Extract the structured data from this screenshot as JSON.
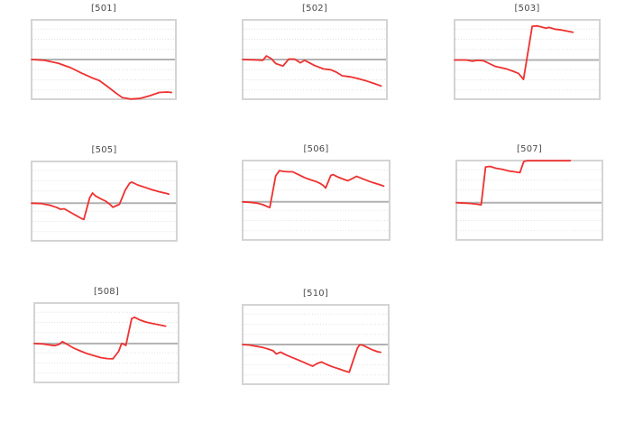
{
  "page": {
    "background": "#ffffff",
    "description": "Grid of eight red sparkline trend charts with bracketed numeric titles"
  },
  "style": {
    "line_color": "#ee3230",
    "zero_line_color": "#b2b2b2",
    "border_color": "#d4d4d4",
    "grid_color": "#e1e1e1",
    "title_color": "#4a4a4a",
    "plot_background": "#ffffff"
  },
  "chart_data": [
    {
      "id": "501",
      "title": "[501]",
      "type": "line",
      "grid": "horizontal-dotted",
      "x_axis": "hidden",
      "y_axis": "hidden",
      "zero_line_frac": 0.5,
      "units": "normalized: v = fraction of plot height above (+) / below (-) the zero line",
      "points": [
        [
          0.0,
          0.0
        ],
        [
          0.05,
          -0.005
        ],
        [
          0.09,
          -0.01
        ],
        [
          0.185,
          -0.045
        ],
        [
          0.27,
          -0.1
        ],
        [
          0.345,
          -0.165
        ],
        [
          0.42,
          -0.225
        ],
        [
          0.47,
          -0.26
        ],
        [
          0.535,
          -0.345
        ],
        [
          0.59,
          -0.42
        ],
        [
          0.63,
          -0.47
        ],
        [
          0.685,
          -0.49
        ],
        [
          0.75,
          -0.48
        ],
        [
          0.82,
          -0.445
        ],
        [
          0.885,
          -0.405
        ],
        [
          0.94,
          -0.4
        ],
        [
          0.97,
          -0.405
        ]
      ]
    },
    {
      "id": "502",
      "title": "[502]",
      "type": "line",
      "grid": "horizontal-dotted",
      "x_axis": "hidden",
      "y_axis": "hidden",
      "zero_line_frac": 0.5,
      "units": "normalized: v = fraction of plot height above (+) / below (-) the zero line",
      "points": [
        [
          0.0,
          0.0
        ],
        [
          0.09,
          -0.005
        ],
        [
          0.14,
          -0.01
        ],
        [
          0.165,
          0.045
        ],
        [
          0.2,
          0.01
        ],
        [
          0.23,
          -0.05
        ],
        [
          0.28,
          -0.08
        ],
        [
          0.32,
          0.005
        ],
        [
          0.36,
          0.005
        ],
        [
          0.4,
          -0.04
        ],
        [
          0.43,
          -0.01
        ],
        [
          0.5,
          -0.075
        ],
        [
          0.56,
          -0.115
        ],
        [
          0.61,
          -0.125
        ],
        [
          0.65,
          -0.155
        ],
        [
          0.69,
          -0.2
        ],
        [
          0.75,
          -0.215
        ],
        [
          0.79,
          -0.23
        ],
        [
          0.86,
          -0.265
        ],
        [
          0.91,
          -0.295
        ],
        [
          0.96,
          -0.325
        ]
      ]
    },
    {
      "id": "503",
      "title": "[503]",
      "type": "line",
      "grid": "horizontal-dotted",
      "x_axis": "hidden",
      "y_axis": "hidden",
      "zero_line_frac": 0.505,
      "units": "normalized: v = fraction of plot height above (+) / below (-) the zero line",
      "points": [
        [
          0.0,
          0.0
        ],
        [
          0.08,
          0.0
        ],
        [
          0.12,
          -0.015
        ],
        [
          0.16,
          -0.005
        ],
        [
          0.2,
          -0.01
        ],
        [
          0.24,
          -0.045
        ],
        [
          0.28,
          -0.08
        ],
        [
          0.32,
          -0.095
        ],
        [
          0.365,
          -0.115
        ],
        [
          0.405,
          -0.14
        ],
        [
          0.44,
          -0.165
        ],
        [
          0.475,
          -0.24
        ],
        [
          0.535,
          0.415
        ],
        [
          0.57,
          0.42
        ],
        [
          0.6,
          0.405
        ],
        [
          0.63,
          0.39
        ],
        [
          0.65,
          0.4
        ],
        [
          0.69,
          0.38
        ],
        [
          0.735,
          0.37
        ],
        [
          0.775,
          0.355
        ],
        [
          0.815,
          0.34
        ]
      ]
    },
    {
      "id": "505",
      "title": "[505]",
      "type": "line",
      "grid": "horizontal-dotted",
      "x_axis": "hidden",
      "y_axis": "hidden",
      "zero_line_frac": 0.525,
      "units": "normalized: v = fraction of plot height above (+) / below (-) the zero line",
      "points": [
        [
          0.0,
          0.0
        ],
        [
          0.07,
          -0.005
        ],
        [
          0.125,
          -0.025
        ],
        [
          0.17,
          -0.05
        ],
        [
          0.2,
          -0.075
        ],
        [
          0.225,
          -0.07
        ],
        [
          0.27,
          -0.115
        ],
        [
          0.31,
          -0.155
        ],
        [
          0.345,
          -0.19
        ],
        [
          0.36,
          -0.2
        ],
        [
          0.4,
          0.065
        ],
        [
          0.42,
          0.125
        ],
        [
          0.44,
          0.09
        ],
        [
          0.475,
          0.055
        ],
        [
          0.51,
          0.025
        ],
        [
          0.54,
          -0.015
        ],
        [
          0.56,
          -0.05
        ],
        [
          0.585,
          -0.03
        ],
        [
          0.605,
          -0.015
        ],
        [
          0.645,
          0.16
        ],
        [
          0.675,
          0.245
        ],
        [
          0.69,
          0.26
        ],
        [
          0.73,
          0.225
        ],
        [
          0.78,
          0.195
        ],
        [
          0.83,
          0.165
        ],
        [
          0.88,
          0.14
        ],
        [
          0.93,
          0.12
        ],
        [
          0.945,
          0.112
        ]
      ]
    },
    {
      "id": "506",
      "title": "[506]",
      "type": "line",
      "grid": "horizontal-dotted",
      "x_axis": "hidden",
      "y_axis": "hidden",
      "zero_line_frac": 0.52,
      "units": "normalized: v = fraction of plot height above (+) / below (-) the zero line",
      "points": [
        [
          0.0,
          0.0
        ],
        [
          0.05,
          -0.005
        ],
        [
          0.1,
          -0.015
        ],
        [
          0.14,
          -0.035
        ],
        [
          0.17,
          -0.06
        ],
        [
          0.185,
          -0.07
        ],
        [
          0.225,
          0.32
        ],
        [
          0.25,
          0.385
        ],
        [
          0.28,
          0.375
        ],
        [
          0.315,
          0.37
        ],
        [
          0.34,
          0.37
        ],
        [
          0.38,
          0.335
        ],
        [
          0.42,
          0.3
        ],
        [
          0.465,
          0.27
        ],
        [
          0.5,
          0.25
        ],
        [
          0.53,
          0.225
        ],
        [
          0.55,
          0.2
        ],
        [
          0.565,
          0.17
        ],
        [
          0.6,
          0.325
        ],
        [
          0.615,
          0.335
        ],
        [
          0.65,
          0.305
        ],
        [
          0.685,
          0.28
        ],
        [
          0.715,
          0.26
        ],
        [
          0.75,
          0.29
        ],
        [
          0.775,
          0.315
        ],
        [
          0.795,
          0.3
        ],
        [
          0.83,
          0.275
        ],
        [
          0.865,
          0.25
        ],
        [
          0.9,
          0.23
        ],
        [
          0.935,
          0.21
        ],
        [
          0.96,
          0.195
        ]
      ]
    },
    {
      "id": "507",
      "title": "[507]",
      "type": "line",
      "grid": "horizontal-dotted",
      "x_axis": "hidden",
      "y_axis": "hidden",
      "zero_line_frac": 0.53,
      "units": "normalized: v = fraction of plot height above (+) / below (-) the zero line; final plateau clipped at plot top",
      "points": [
        [
          0.0,
          0.0
        ],
        [
          0.055,
          -0.005
        ],
        [
          0.1,
          -0.01
        ],
        [
          0.145,
          -0.02
        ],
        [
          0.17,
          -0.027
        ],
        [
          0.2,
          0.44
        ],
        [
          0.23,
          0.447
        ],
        [
          0.27,
          0.425
        ],
        [
          0.315,
          0.41
        ],
        [
          0.36,
          0.39
        ],
        [
          0.4,
          0.38
        ],
        [
          0.435,
          0.37
        ],
        [
          0.462,
          0.508
        ],
        [
          0.485,
          0.53
        ],
        [
          0.78,
          0.53
        ]
      ]
    },
    {
      "id": "508",
      "title": "[508]",
      "type": "line",
      "grid": "horizontal-dotted",
      "x_axis": "hidden",
      "y_axis": "hidden",
      "zero_line_frac": 0.51,
      "units": "normalized: v = fraction of plot height above (+) / below (-) the zero line",
      "points": [
        [
          0.0,
          0.0
        ],
        [
          0.06,
          -0.005
        ],
        [
          0.1,
          -0.015
        ],
        [
          0.14,
          -0.025
        ],
        [
          0.17,
          -0.012
        ],
        [
          0.195,
          0.023
        ],
        [
          0.23,
          -0.012
        ],
        [
          0.275,
          -0.058
        ],
        [
          0.325,
          -0.096
        ],
        [
          0.37,
          -0.127
        ],
        [
          0.415,
          -0.15
        ],
        [
          0.46,
          -0.173
        ],
        [
          0.505,
          -0.185
        ],
        [
          0.545,
          -0.188
        ],
        [
          0.585,
          -0.096
        ],
        [
          0.605,
          0.0
        ],
        [
          0.62,
          -0.008
        ],
        [
          0.635,
          -0.023
        ],
        [
          0.675,
          0.308
        ],
        [
          0.695,
          0.323
        ],
        [
          0.73,
          0.292
        ],
        [
          0.775,
          0.265
        ],
        [
          0.82,
          0.246
        ],
        [
          0.865,
          0.231
        ],
        [
          0.91,
          0.215
        ]
      ]
    },
    {
      "id": "510",
      "title": "[510]",
      "type": "line",
      "grid": "horizontal-dotted",
      "x_axis": "hidden",
      "y_axis": "hidden",
      "zero_line_frac": 0.5,
      "units": "normalized: v = fraction of plot height above (+) / below (-) the zero line",
      "points": [
        [
          0.0,
          0.0
        ],
        [
          0.05,
          -0.007
        ],
        [
          0.095,
          -0.022
        ],
        [
          0.14,
          -0.037
        ],
        [
          0.175,
          -0.056
        ],
        [
          0.21,
          -0.078
        ],
        [
          0.23,
          -0.115
        ],
        [
          0.26,
          -0.093
        ],
        [
          0.3,
          -0.13
        ],
        [
          0.34,
          -0.16
        ],
        [
          0.38,
          -0.19
        ],
        [
          0.42,
          -0.22
        ],
        [
          0.46,
          -0.252
        ],
        [
          0.48,
          -0.267
        ],
        [
          0.51,
          -0.233
        ],
        [
          0.54,
          -0.215
        ],
        [
          0.575,
          -0.244
        ],
        [
          0.615,
          -0.274
        ],
        [
          0.66,
          -0.3
        ],
        [
          0.7,
          -0.326
        ],
        [
          0.73,
          -0.341
        ],
        [
          0.785,
          -0.048
        ],
        [
          0.8,
          -0.004
        ],
        [
          0.82,
          -0.007
        ],
        [
          0.855,
          -0.037
        ],
        [
          0.89,
          -0.067
        ],
        [
          0.925,
          -0.089
        ],
        [
          0.945,
          -0.096
        ]
      ]
    }
  ]
}
